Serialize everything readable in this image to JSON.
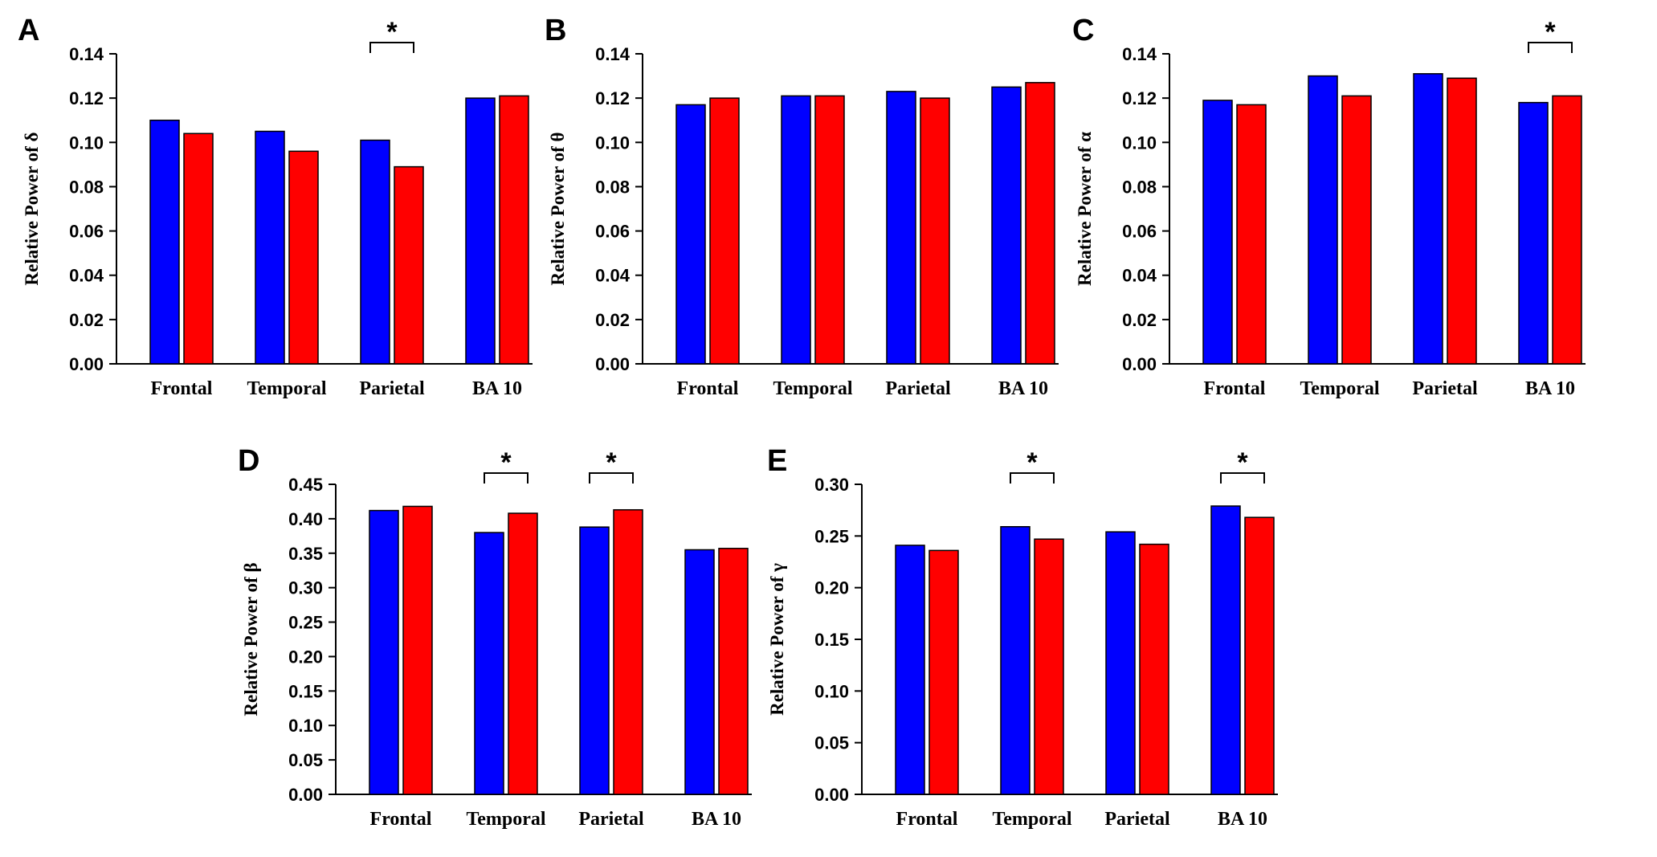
{
  "colors": {
    "group1": "#0000ff",
    "group2": "#ff0000",
    "axis": "#000000"
  },
  "chart_data": [
    {
      "type": "bar",
      "panel": "A",
      "ylabel": "Relative Power of δ",
      "categories": [
        "Frontal",
        "Temporal",
        "Parietal",
        "BA 10"
      ],
      "series": [
        {
          "name": "group1",
          "values": [
            0.11,
            0.105,
            0.101,
            0.12
          ]
        },
        {
          "name": "group2",
          "values": [
            0.104,
            0.096,
            0.089,
            0.121
          ]
        }
      ],
      "ylim": [
        0,
        0.14
      ],
      "yticks": [
        0.0,
        0.02,
        0.04,
        0.06,
        0.08,
        0.1,
        0.12,
        0.14
      ],
      "ytick_labels": [
        "0.00",
        "0.02",
        "0.04",
        "0.06",
        "0.08",
        "0.10",
        "0.12",
        "0.14"
      ],
      "significance": [
        {
          "category": "Parietal",
          "label": "*"
        }
      ]
    },
    {
      "type": "bar",
      "panel": "B",
      "ylabel": "Relative Power of θ",
      "categories": [
        "Frontal",
        "Temporal",
        "Parietal",
        "BA 10"
      ],
      "series": [
        {
          "name": "group1",
          "values": [
            0.117,
            0.121,
            0.123,
            0.125
          ]
        },
        {
          "name": "group2",
          "values": [
            0.12,
            0.121,
            0.12,
            0.127
          ]
        }
      ],
      "ylim": [
        0,
        0.14
      ],
      "yticks": [
        0.0,
        0.02,
        0.04,
        0.06,
        0.08,
        0.1,
        0.12,
        0.14
      ],
      "ytick_labels": [
        "0.00",
        "0.02",
        "0.04",
        "0.06",
        "0.08",
        "0.10",
        "0.12",
        "0.14"
      ],
      "significance": []
    },
    {
      "type": "bar",
      "panel": "C",
      "ylabel": "Relative Power of α",
      "categories": [
        "Frontal",
        "Temporal",
        "Parietal",
        "BA 10"
      ],
      "series": [
        {
          "name": "group1",
          "values": [
            0.119,
            0.13,
            0.131,
            0.118
          ]
        },
        {
          "name": "group2",
          "values": [
            0.117,
            0.121,
            0.129,
            0.121
          ]
        }
      ],
      "ylim": [
        0,
        0.14
      ],
      "yticks": [
        0.0,
        0.02,
        0.04,
        0.06,
        0.08,
        0.1,
        0.12,
        0.14
      ],
      "ytick_labels": [
        "0.00",
        "0.02",
        "0.04",
        "0.06",
        "0.08",
        "0.10",
        "0.12",
        "0.14"
      ],
      "significance": [
        {
          "category": "BA 10",
          "label": "*"
        }
      ]
    },
    {
      "type": "bar",
      "panel": "D",
      "ylabel": "Relative Power of β",
      "categories": [
        "Frontal",
        "Temporal",
        "Parietal",
        "BA 10"
      ],
      "series": [
        {
          "name": "group1",
          "values": [
            0.412,
            0.38,
            0.388,
            0.355
          ]
        },
        {
          "name": "group2",
          "values": [
            0.418,
            0.408,
            0.413,
            0.357
          ]
        }
      ],
      "ylim": [
        0,
        0.45
      ],
      "yticks": [
        0.0,
        0.05,
        0.1,
        0.15,
        0.2,
        0.25,
        0.3,
        0.35,
        0.4,
        0.45
      ],
      "ytick_labels": [
        "0.00",
        "0.05",
        "0.10",
        "0.15",
        "0.20",
        "0.25",
        "0.30",
        "0.35",
        "0.40",
        "0.45"
      ],
      "significance": [
        {
          "category": "Temporal",
          "label": "*"
        },
        {
          "category": "Parietal",
          "label": "*"
        }
      ]
    },
    {
      "type": "bar",
      "panel": "E",
      "ylabel": "Relative Power of γ",
      "categories": [
        "Frontal",
        "Temporal",
        "Parietal",
        "BA 10"
      ],
      "series": [
        {
          "name": "group1",
          "values": [
            0.241,
            0.259,
            0.254,
            0.279
          ]
        },
        {
          "name": "group2",
          "values": [
            0.236,
            0.247,
            0.242,
            0.268
          ]
        }
      ],
      "ylim": [
        0,
        0.3
      ],
      "yticks": [
        0.0,
        0.05,
        0.1,
        0.15,
        0.2,
        0.25,
        0.3
      ],
      "ytick_labels": [
        "0.00",
        "0.05",
        "0.10",
        "0.15",
        "0.20",
        "0.25",
        "0.30"
      ],
      "significance": [
        {
          "category": "Temporal",
          "label": "*"
        },
        {
          "category": "BA 10",
          "label": "*"
        }
      ]
    }
  ]
}
